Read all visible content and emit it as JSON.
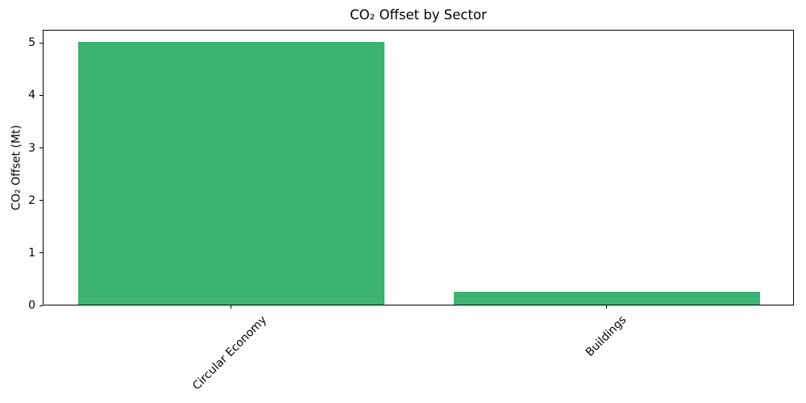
{
  "chart_data": {
    "type": "bar",
    "title": "CO₂ Offset by Sector",
    "xlabel": "",
    "ylabel": "CO₂ Offset (Mt)",
    "categories": [
      "Circular Economy",
      "Buildings"
    ],
    "values": [
      5,
      0.25
    ],
    "yticks": [
      0,
      1,
      2,
      3,
      4,
      5
    ],
    "ylim": [
      0,
      5.25
    ],
    "bar_color": "#3cb371",
    "background_color": "#ffffff",
    "grid": "off",
    "legend": "none",
    "xtick_rotation_degrees": 45
  }
}
